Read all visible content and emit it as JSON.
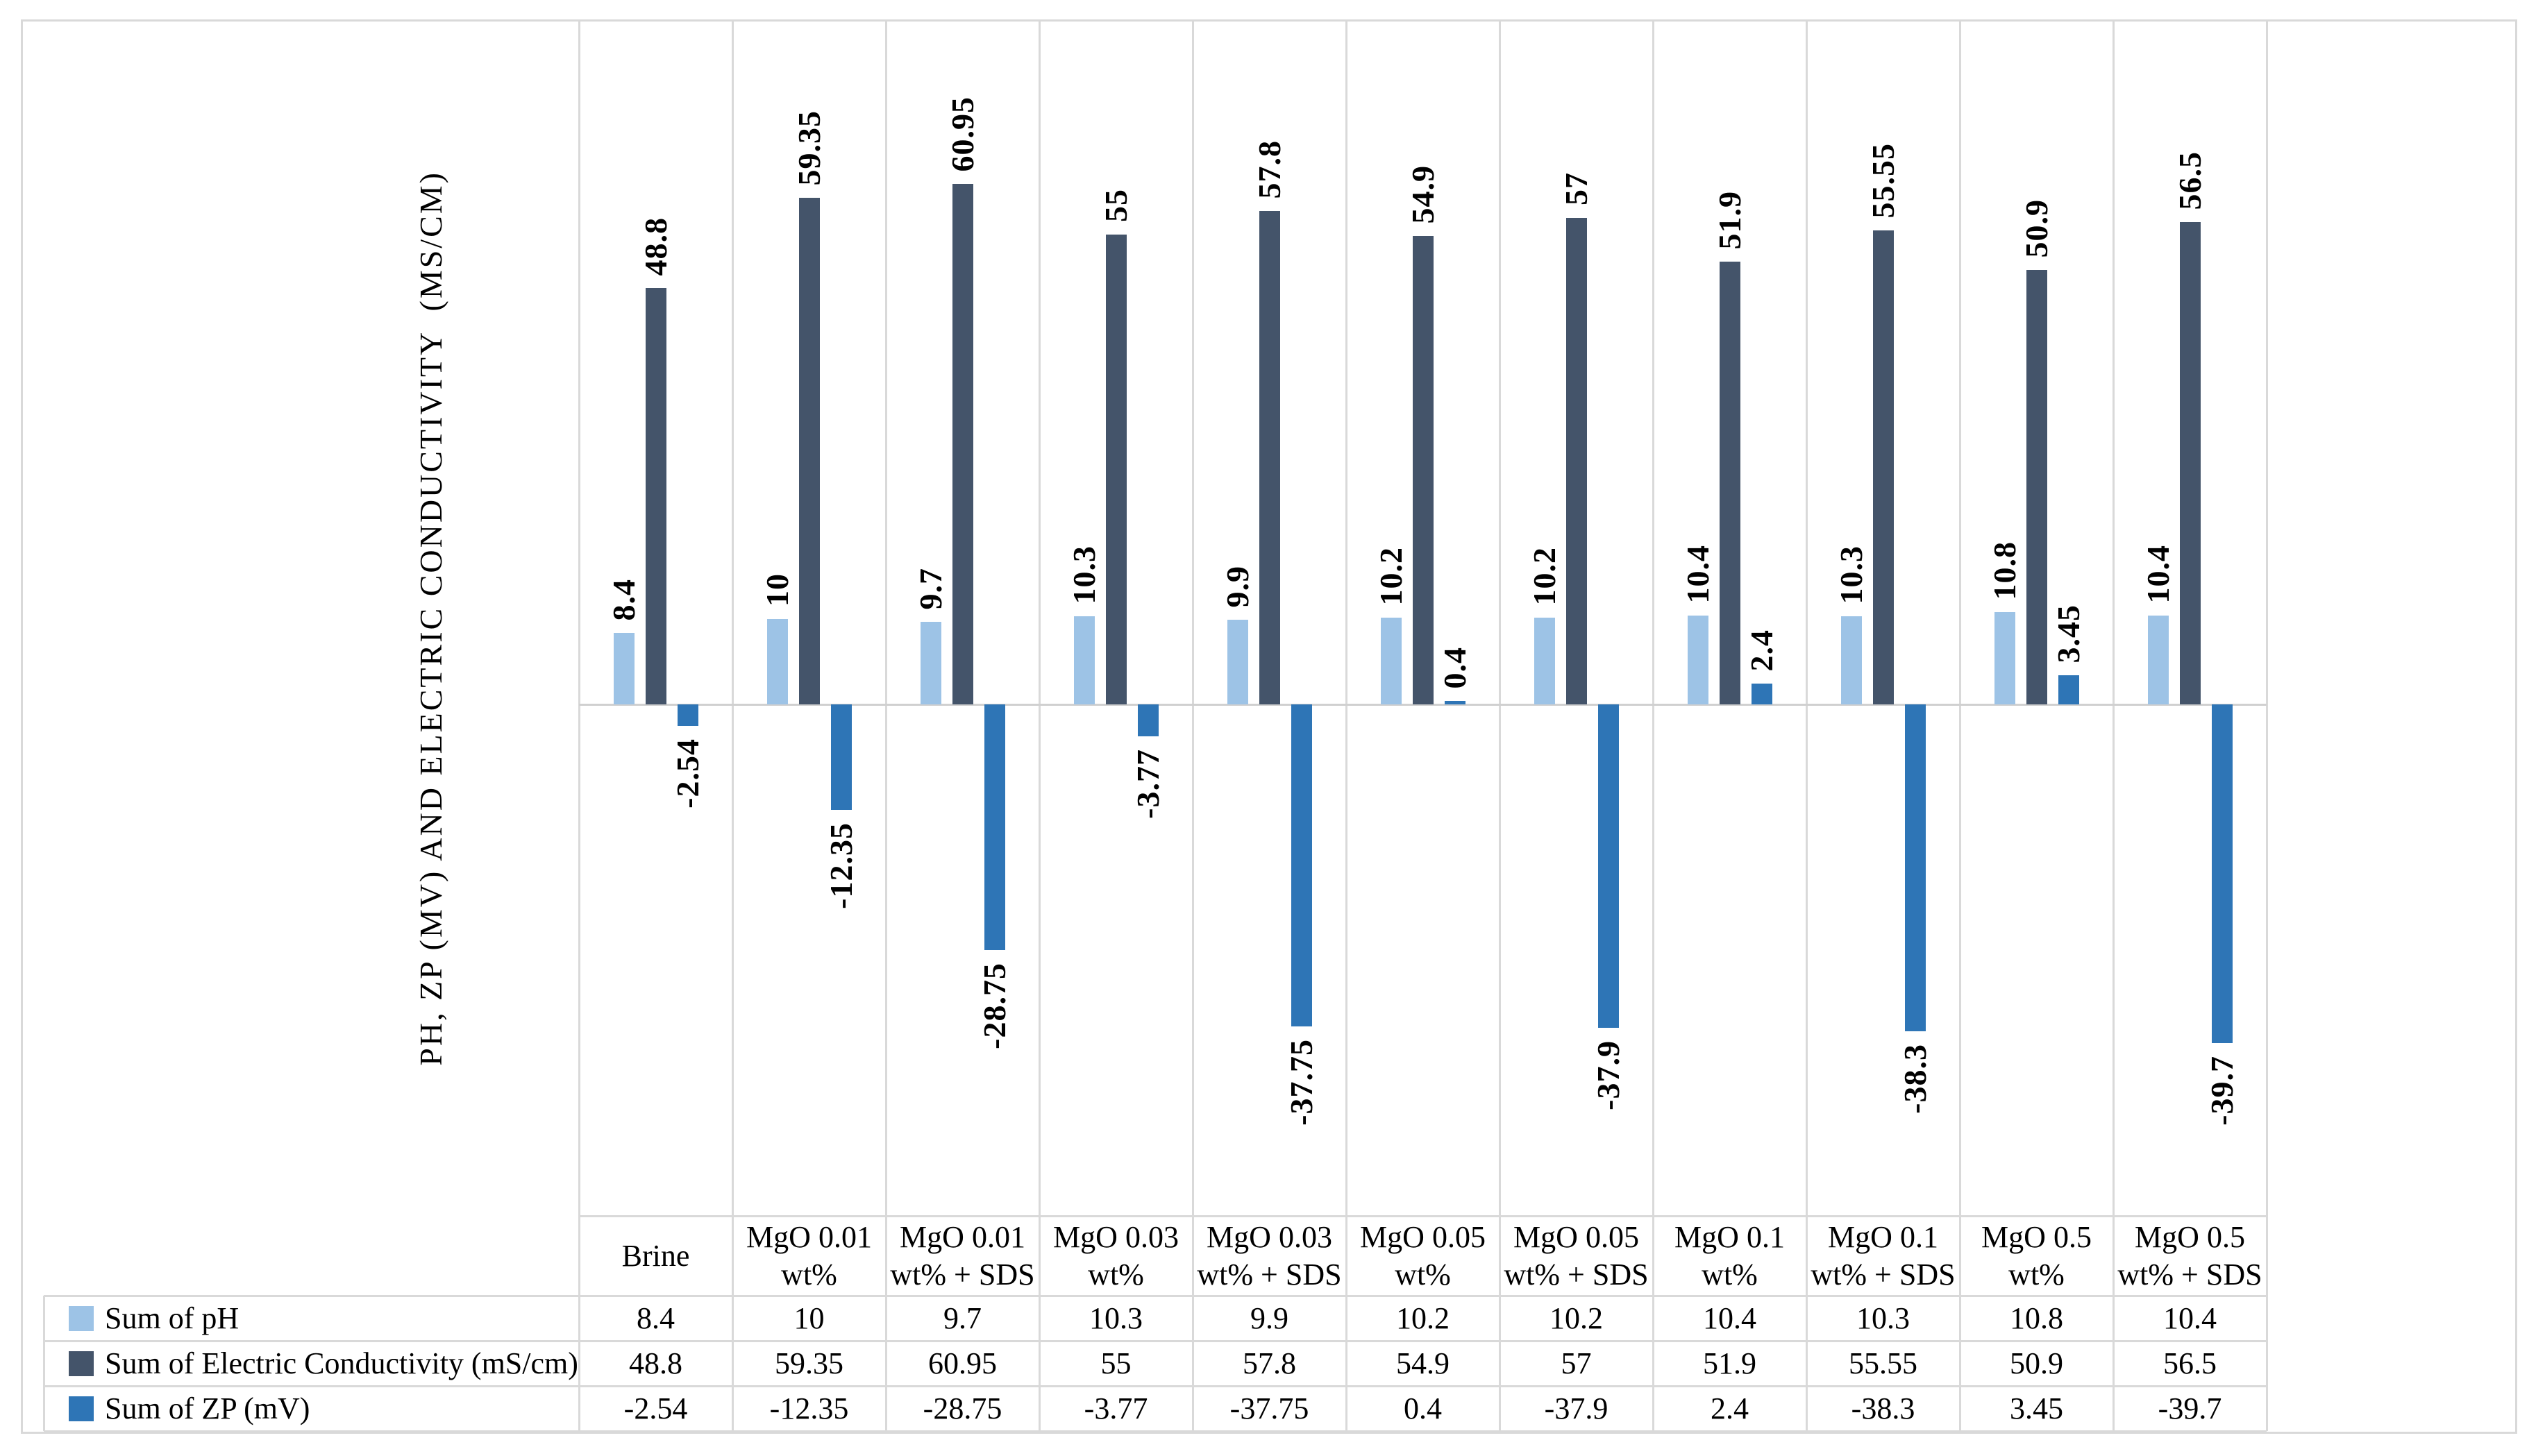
{
  "figure": {
    "background": "#FFFFFF",
    "frame_color": "#D9D9D9",
    "gridline_color": "#D9D9D9",
    "zero_line_color": "#D0D0D0",
    "text_color": "#000000"
  },
  "axis_title": "PH, ZP (MV) AND ELECTRIC CONDUCTIVITY  (MS/CM)",
  "chart_data": {
    "type": "bar",
    "title": "",
    "xlabel": "",
    "ylabel": "PH, ZP (MV) AND ELECTRIC CONDUCTIVITY  (MS/CM)",
    "ylim": [
      -60,
      80
    ],
    "grid": {
      "vertical_column_separators": true,
      "horizontal_gridlines": false,
      "zero_axis_line": true
    },
    "legend_position": "left-of-table-rows",
    "data_labels": "rotated-90-bold-serif",
    "categories": [
      "Brine",
      "MgO 0.01 wt%",
      "MgO 0.01 wt% + SDS",
      "MgO 0.03 wt%",
      "MgO 0.03 wt% + SDS",
      "MgO 0.05 wt%",
      "MgO 0.05 wt% + SDS",
      "MgO 0.1 wt%",
      "MgO 0.1 wt% + SDS",
      "MgO 0.5 wt%",
      "MgO 0.5 wt% + SDS"
    ],
    "category_lines": [
      [
        "Brine"
      ],
      [
        "MgO 0.01",
        "wt%"
      ],
      [
        "MgO 0.01",
        "wt% + SDS"
      ],
      [
        "MgO 0.03",
        "wt%"
      ],
      [
        "MgO 0.03",
        "wt% + SDS"
      ],
      [
        "MgO 0.05",
        "wt%"
      ],
      [
        "MgO 0.05",
        "wt% + SDS"
      ],
      [
        "MgO 0.1",
        "wt%"
      ],
      [
        "MgO 0.1",
        "wt% + SDS"
      ],
      [
        "MgO 0.5",
        "wt%"
      ],
      [
        "MgO 0.5",
        "wt% + SDS"
      ]
    ],
    "series": [
      {
        "name": "Sum of pH",
        "color": "#9DC3E6",
        "values": [
          8.4,
          10,
          9.7,
          10.3,
          9.9,
          10.2,
          10.2,
          10.4,
          10.3,
          10.8,
          10.4
        ]
      },
      {
        "name": "Sum of Electric Conductivity (mS/cm)",
        "color": "#44546A",
        "values": [
          48.8,
          59.35,
          60.95,
          55,
          57.8,
          54.9,
          57,
          51.9,
          55.55,
          50.9,
          56.5
        ]
      },
      {
        "name": "Sum of ZP (mV)",
        "color": "#2E75B6",
        "values": [
          -2.54,
          -12.35,
          -28.75,
          -3.77,
          -37.75,
          0.4,
          -37.9,
          2.4,
          -38.3,
          3.45,
          -39.7
        ]
      }
    ]
  },
  "table": {
    "column_headers": [
      "Brine",
      "MgO 0.01 wt%",
      "MgO 0.01 wt% + SDS",
      "MgO 0.03 wt%",
      "MgO 0.03 wt% + SDS",
      "MgO 0.05 wt%",
      "MgO 0.05 wt% + SDS",
      "MgO 0.1 wt%",
      "MgO 0.1 wt% + SDS",
      "MgO 0.5 wt%",
      "MgO 0.5 wt% + SDS"
    ],
    "rows": [
      {
        "label": "Sum of pH",
        "swatch_color": "#9DC3E6",
        "values": [
          "8.4",
          "10",
          "9.7",
          "10.3",
          "9.9",
          "10.2",
          "10.2",
          "10.4",
          "10.3",
          "10.8",
          "10.4"
        ]
      },
      {
        "label": "Sum of Electric Conductivity (mS/cm)",
        "swatch_color": "#44546A",
        "values": [
          "48.8",
          "59.35",
          "60.95",
          "55",
          "57.8",
          "54.9",
          "57",
          "51.9",
          "55.55",
          "50.9",
          "56.5"
        ]
      },
      {
        "label": "Sum of ZP (mV)",
        "swatch_color": "#2E75B6",
        "values": [
          "-2.54",
          "-12.35",
          "-28.75",
          "-3.77",
          "-37.75",
          "0.4",
          "-37.9",
          "2.4",
          "-38.3",
          "3.45",
          "-39.7"
        ]
      }
    ]
  }
}
